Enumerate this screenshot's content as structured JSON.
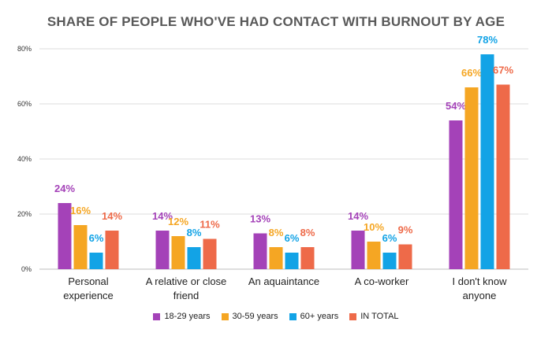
{
  "chart_data": {
    "type": "bar",
    "title": "SHARE OF PEOPLE WHO'VE HAD CONTACT WITH BURNOUT BY AGE",
    "categories": [
      [
        "Personal",
        "experience"
      ],
      [
        "A relative or close",
        "friend"
      ],
      [
        "An aquaintance"
      ],
      [
        "A co-worker"
      ],
      [
        "I don't know",
        "anyone"
      ]
    ],
    "series": [
      {
        "name": "18-29 years",
        "color": "#a442b8",
        "values": [
          24,
          14,
          13,
          14,
          54
        ],
        "labels": [
          "24%",
          "14%",
          "13%",
          "14%",
          "54%"
        ]
      },
      {
        "name": "30-59 years",
        "color": "#f5a623",
        "values": [
          16,
          12,
          8,
          10,
          66
        ],
        "labels": [
          "16%",
          "12%",
          "8%",
          "10%",
          "66%"
        ]
      },
      {
        "name": "60+ years",
        "color": "#12a3e6",
        "values": [
          6,
          8,
          6,
          6,
          78
        ],
        "labels": [
          "6%",
          "8%",
          "6%",
          "6%",
          "78%"
        ]
      },
      {
        "name": "IN TOTAL",
        "color": "#ee6a49",
        "values": [
          14,
          11,
          8,
          9,
          67
        ],
        "labels": [
          "14%",
          "11%",
          "8%",
          "9%",
          "67%"
        ]
      }
    ],
    "yticks": [
      0,
      20,
      40,
      60,
      80
    ],
    "ytick_labels": [
      "0%",
      "20%",
      "40%",
      "60%",
      "80%"
    ],
    "ylim": [
      0,
      80
    ],
    "grid": true,
    "legend_position": "bottom"
  }
}
